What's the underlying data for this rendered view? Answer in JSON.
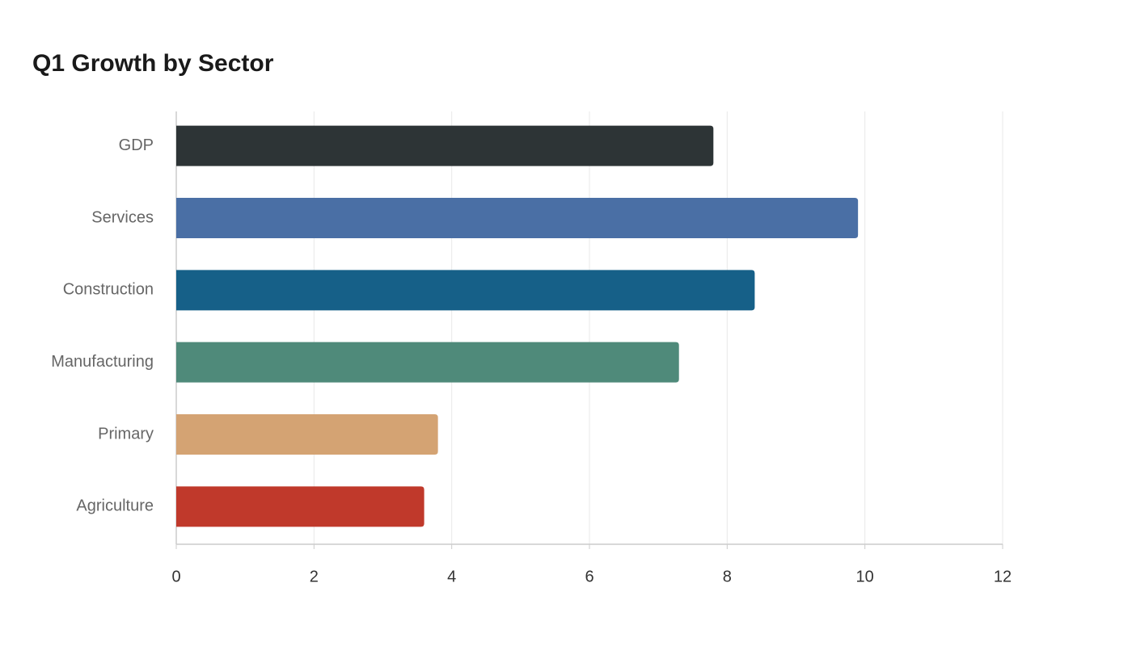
{
  "chart_data": {
    "type": "bar",
    "orientation": "horizontal",
    "title": "Q1 Growth by Sector",
    "categories": [
      "GDP",
      "Services",
      "Construction",
      "Manufacturing",
      "Primary",
      "Agriculture"
    ],
    "values": [
      7.8,
      9.9,
      8.4,
      7.3,
      3.8,
      3.6
    ],
    "colors": [
      "#2d3436",
      "#4a6fa5",
      "#166088",
      "#4f8a7a",
      "#d4a373",
      "#c0392b"
    ],
    "xlim": [
      0,
      12
    ],
    "xticks": [
      0,
      2,
      4,
      6,
      8,
      10,
      12
    ],
    "grid": true
  }
}
